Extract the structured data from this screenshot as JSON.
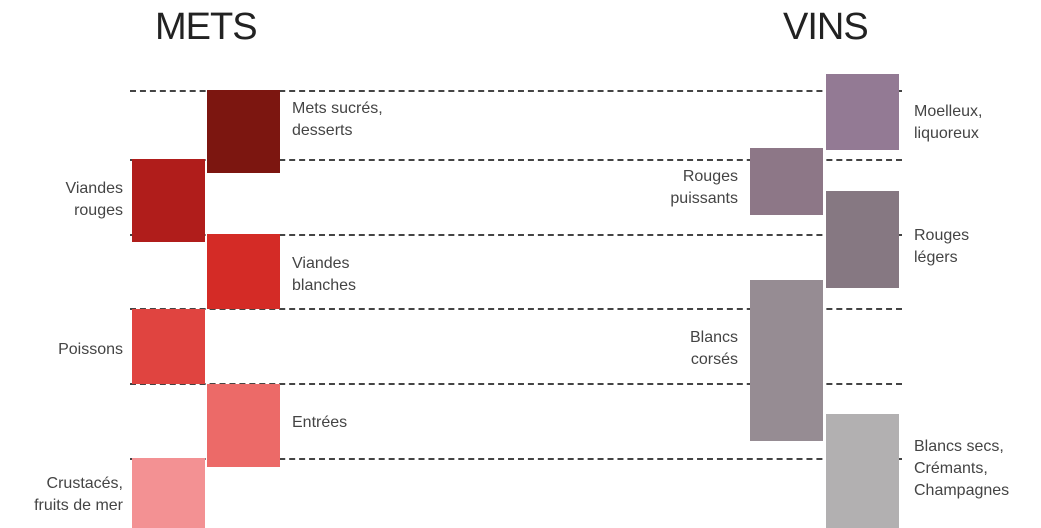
{
  "headers": {
    "mets": "METS",
    "vins": "VINS"
  },
  "mets": [
    {
      "label": "Mets sucrés,\ndesserts",
      "color": "#7c1610"
    },
    {
      "label": "Viandes\nrouges",
      "color": "#b01d1b"
    },
    {
      "label": "Viandes\nblanches",
      "color": "#d42b26"
    },
    {
      "label": "Poissons",
      "color": "#e04440"
    },
    {
      "label": "Entrées",
      "color": "#ec6a68"
    },
    {
      "label": "Crustacés,\nfruits de mer",
      "color": "#f39193"
    }
  ],
  "vins": [
    {
      "label": "Moelleux,\nliquoreux",
      "color": "#937a94"
    },
    {
      "label": "Rouges\npuissants",
      "color": "#8d7787"
    },
    {
      "label": "Rouges\nlégers",
      "color": "#867882"
    },
    {
      "label": "Blancs\ncorsés",
      "color": "#968c93"
    },
    {
      "label": "Blancs secs,\nCrémants,\nChampagnes",
      "color": "#b2b0b1"
    }
  ]
}
